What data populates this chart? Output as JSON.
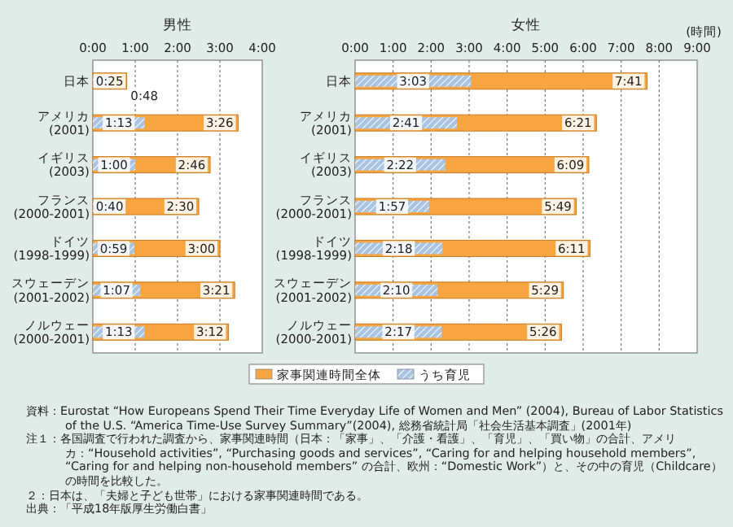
{
  "chart_data": [
    {
      "type": "bar",
      "orientation": "horizontal",
      "title": "男性",
      "grid": "x",
      "legend": false,
      "categories": [
        "日本",
        "アメリカ\n(2001)",
        "イギリス\n(2003)",
        "フランス\n(2000-2001)",
        "ドイツ\n(1998-1999)",
        "スウェーデン\n(2001-2002)",
        "ノルウェー\n(2000-2001)"
      ],
      "xlim": [
        0,
        4
      ],
      "xticks": [
        {
          "value": 0,
          "label": "0:00"
        },
        {
          "value": 1,
          "label": "1:00"
        },
        {
          "value": 2,
          "label": "2:00"
        },
        {
          "value": 3,
          "label": "3:00"
        },
        {
          "value": 4,
          "label": "4:00"
        }
      ],
      "series": [
        {
          "color": "#f7a541",
          "values": [
            0.8,
            3.43,
            2.77,
            2.5,
            3,
            3.35,
            3.2
          ],
          "value_labels": [
            "0:48",
            "3:26",
            "2:46",
            "2:30",
            "3:00",
            "3:21",
            "3:12"
          ]
        },
        {
          "color": "#a9c4e2",
          "values": [
            0.42,
            1.22,
            1,
            0.67,
            0.98,
            1.12,
            1.22
          ],
          "value_labels": [
            "0:25",
            "1:13",
            "1:00",
            "0:40",
            "0:59",
            "1:07",
            "1:13"
          ]
        }
      ]
    },
    {
      "type": "bar",
      "orientation": "horizontal",
      "title": "女性",
      "xlabel": "(時間)",
      "grid": "x",
      "legend": "bottom",
      "categories": [
        "日本",
        "アメリカ\n(2001)",
        "イギリス\n(2003)",
        "フランス\n(2000-2001)",
        "ドイツ\n(1998-1999)",
        "スウェーデン\n(2001-2002)",
        "ノルウェー\n(2000-2001)"
      ],
      "xlim": [
        0,
        9
      ],
      "xticks": [
        {
          "value": 0,
          "label": "0:00"
        },
        {
          "value": 1,
          "label": "1:00"
        },
        {
          "value": 2,
          "label": "2:00"
        },
        {
          "value": 3,
          "label": "3:00"
        },
        {
          "value": 4,
          "label": "4:00"
        },
        {
          "value": 5,
          "label": "5:00"
        },
        {
          "value": 6,
          "label": "6:00"
        },
        {
          "value": 7,
          "label": "7:00"
        },
        {
          "value": 8,
          "label": "8:00"
        },
        {
          "value": 9,
          "label": "9:00"
        }
      ],
      "series": [
        {
          "name": "家事関連時間全体",
          "color": "#f7a541",
          "values": [
            7.68,
            6.35,
            6.15,
            5.82,
            6.18,
            5.48,
            5.43
          ],
          "value_labels": [
            "7:41",
            "6:21",
            "6:09",
            "5:49",
            "6:11",
            "5:29",
            "5:26"
          ]
        },
        {
          "name": "うち育児",
          "color": "#a9c4e2",
          "values": [
            3.05,
            2.68,
            2.37,
            1.95,
            2.3,
            2.17,
            2.28
          ],
          "value_labels": [
            "3:03",
            "2:41",
            "2:22",
            "1:57",
            "2:18",
            "2:10",
            "2:17"
          ]
        }
      ],
      "annotations": [
        "資料：Eurostat “How Europeans Spend Their Time Everyday Life of Women and Men” (2004), Bureau of Labor Statistics of the U.S. “America Time-Use Survey Summary”(2004), 総務省統計局「社会生活基本調査」(2001年)",
        "注１：各国調査で行われた調査から、家事関連時間（日本：「家事」、「介護・看護」、「育児」、「買い物」の合計、アメリカ：“Household activities”, “Purchasing goods and services”, “Caring for and helping household members”, “Caring for and helping non-household members” の合計、欧州：“Domestic Work”）と、その中の育児（Childcare）の時間を比較した。",
        "２：日本は、「夫婦と子ども世帯」における家事関連時間である。",
        "出典：「平成18年版厚生労働白書」"
      ]
    }
  ]
}
